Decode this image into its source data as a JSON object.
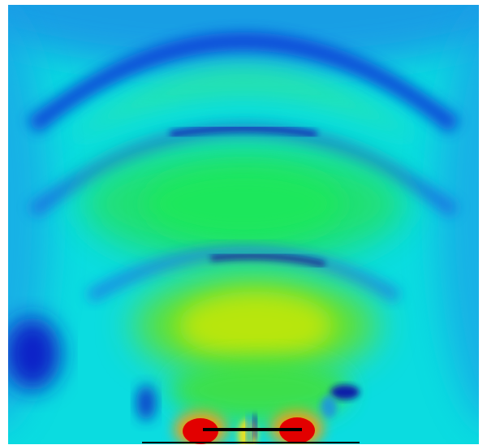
{
  "image": {
    "kind": "field-magnitude-plot",
    "colormap": "jet",
    "colors": {
      "low": "#0000c8",
      "mid_low": "#00e6ee",
      "mid": "#1ee66a",
      "mid_high": "#c8e600",
      "high": "#e80000",
      "element": "#000000"
    }
  }
}
